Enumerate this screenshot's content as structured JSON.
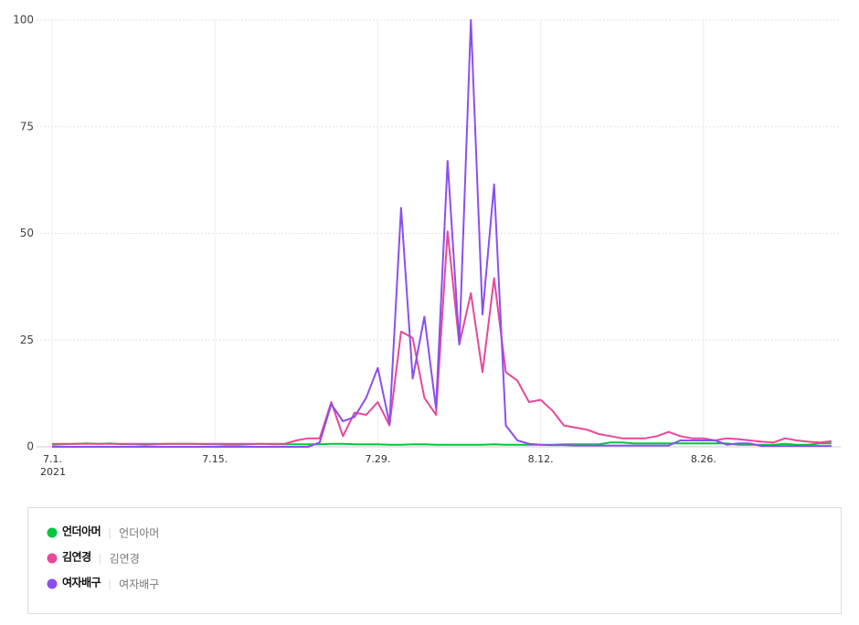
{
  "chart_data": {
    "type": "line",
    "categories": [
      "7.1.",
      null,
      null,
      null,
      null,
      null,
      null,
      null,
      null,
      null,
      null,
      null,
      null,
      null,
      "7.15.",
      null,
      null,
      null,
      null,
      null,
      null,
      null,
      null,
      null,
      null,
      null,
      null,
      null,
      "7.29.",
      null,
      null,
      null,
      null,
      null,
      null,
      null,
      null,
      null,
      null,
      null,
      null,
      null,
      "8.12.",
      null,
      null,
      null,
      null,
      null,
      null,
      null,
      null,
      null,
      null,
      null,
      null,
      null,
      "8.26.",
      null,
      null,
      null,
      null,
      null,
      null,
      null,
      null,
      null,
      null,
      null
    ],
    "x_year": "2021",
    "ylim": [
      0,
      100
    ],
    "yticks": [
      0,
      25,
      50,
      75,
      100
    ],
    "grid": true,
    "series": [
      {
        "name": "언더아머",
        "color": "#00c73c",
        "values": [
          0.5,
          0.6,
          0.7,
          0.8,
          0.7,
          0.8,
          0.6,
          0.6,
          0.5,
          0.6,
          0.7,
          0.7,
          0.7,
          0.6,
          0.6,
          0.5,
          0.5,
          0.6,
          0.7,
          0.6,
          0.6,
          0.6,
          0.6,
          0.6,
          0.7,
          0.7,
          0.6,
          0.6,
          0.6,
          0.5,
          0.5,
          0.6,
          0.6,
          0.5,
          0.5,
          0.5,
          0.5,
          0.5,
          0.6,
          0.5,
          0.5,
          0.5,
          0.5,
          0.5,
          0.6,
          0.6,
          0.6,
          0.6,
          1,
          1,
          0.8,
          0.8,
          0.8,
          0.8,
          0.8,
          0.8,
          0.8,
          0.8,
          0.8,
          0.5,
          0.5,
          0.5,
          0.5,
          0.7,
          0.5,
          0.5,
          0.8,
          0.8
        ]
      },
      {
        "name": "김연경",
        "color": "#e8489a",
        "values": [
          0.7,
          0.7,
          0.7,
          0.7,
          0.7,
          0.7,
          0.7,
          0.7,
          0.7,
          0.7,
          0.7,
          0.7,
          0.7,
          0.7,
          0.7,
          0.7,
          0.7,
          0.7,
          0.7,
          0.7,
          0.7,
          1.5,
          2,
          2,
          10.5,
          2.5,
          8,
          7.5,
          10.5,
          5,
          27,
          25.5,
          11.5,
          7.5,
          50.5,
          24,
          36,
          17.5,
          39.5,
          17.5,
          15.5,
          10.5,
          11,
          8.5,
          5,
          4.5,
          4,
          3,
          2.5,
          2,
          2,
          2,
          2.5,
          3.5,
          2.5,
          2,
          2,
          1.5,
          2,
          1.8,
          1.5,
          1.2,
          1,
          2,
          1.5,
          1.2,
          1,
          1.3
        ]
      },
      {
        "name": "여자배구",
        "color": "#8b4ff0",
        "values": [
          0,
          0,
          0,
          0,
          0,
          0,
          0,
          0,
          0,
          0,
          0,
          0,
          0,
          0,
          0,
          0,
          0,
          0,
          0,
          0,
          0,
          0,
          0,
          1,
          10,
          6,
          7,
          11.5,
          18.5,
          5.5,
          56,
          16,
          30.5,
          9,
          67,
          24,
          100,
          31,
          61.5,
          5,
          1.5,
          0.7,
          0.5,
          0.4,
          0.4,
          0.3,
          0.3,
          0.3,
          0.3,
          0.3,
          0.3,
          0.3,
          0.3,
          0.3,
          1.5,
          1.5,
          1.5,
          1.5,
          0.5,
          0.8,
          0.8,
          0.2,
          0.2,
          0.2,
          0.2,
          0.2,
          0.2,
          0.2
        ]
      }
    ]
  }
}
